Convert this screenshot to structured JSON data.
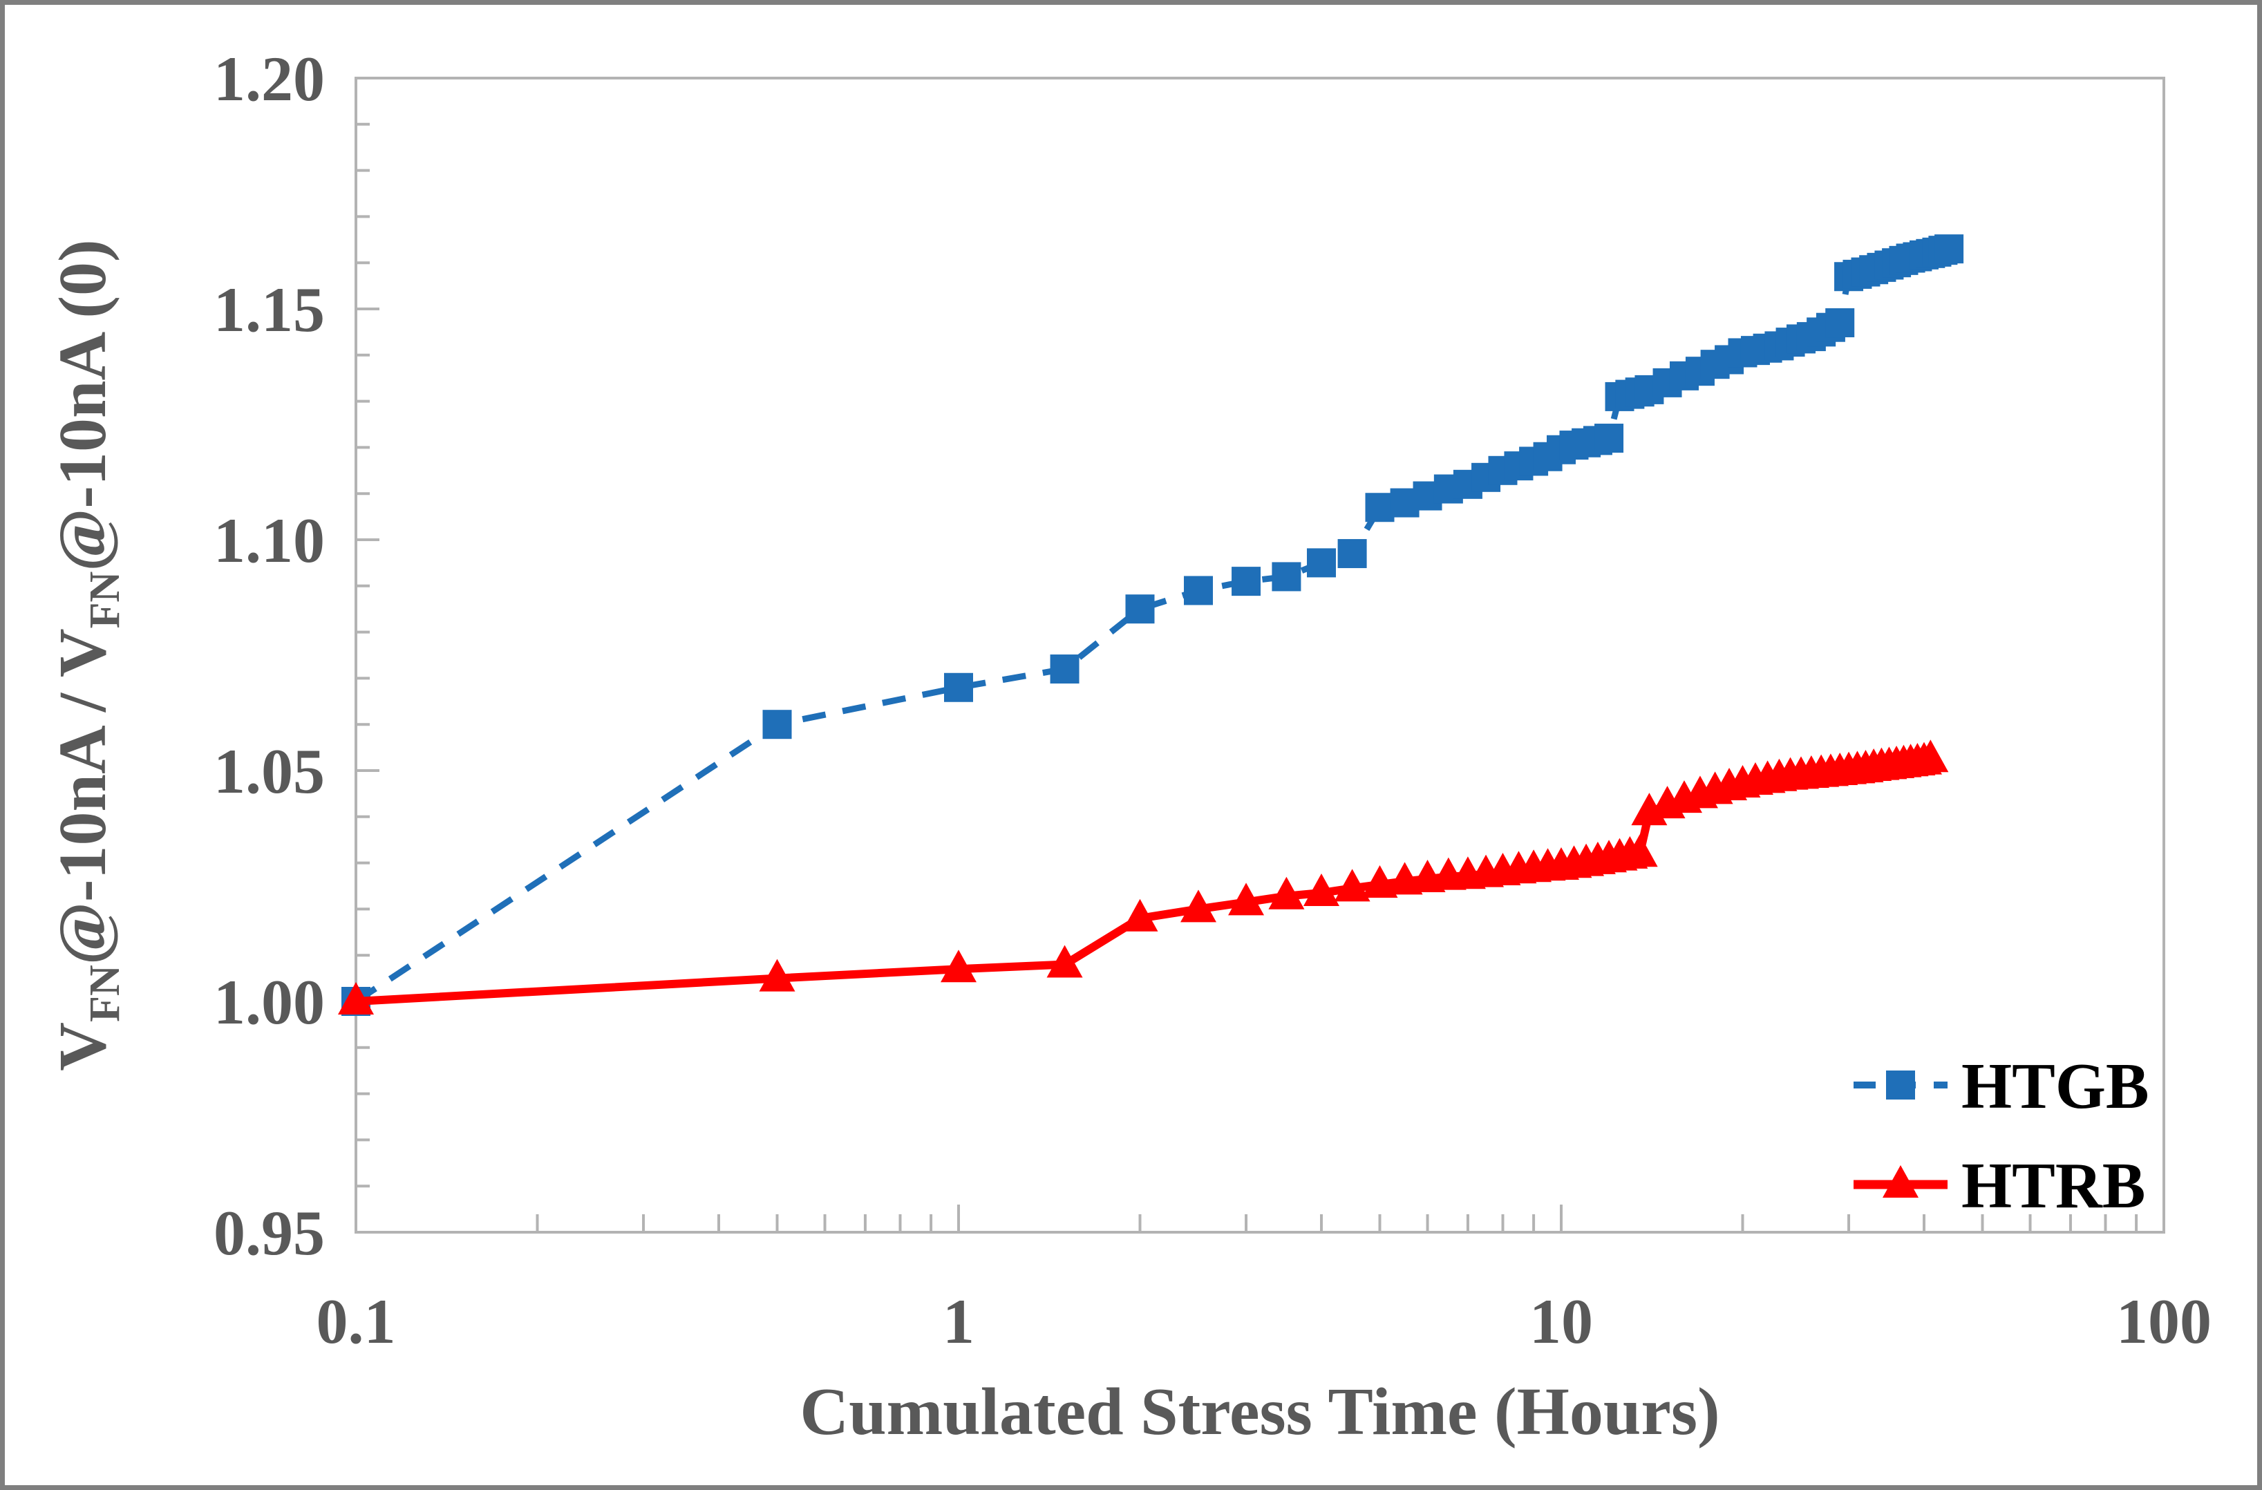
{
  "colors": {
    "htgb_blue": "#1F6FB8",
    "htrb_red": "#FF0000",
    "axis_gray": "#B3B3B3",
    "text_gray": "#595959",
    "legend_text": "#000000",
    "figure_border": "#7F7F7F",
    "background": "#FFFFFF"
  },
  "legend": {
    "items": [
      {
        "label": "HTGB"
      },
      {
        "label": "HTRB"
      }
    ]
  },
  "chart_data": {
    "type": "line",
    "title": "",
    "xlabel": "Cumulated Stress Time (Hours)",
    "ylabel": "VFN@-10nA / VFN@-10nA (0)",
    "ylabel_parts": [
      {
        "t": "V"
      },
      {
        "t": "FN",
        "sub": true
      },
      {
        "t": "@-10nA / V"
      },
      {
        "t": "FN",
        "sub": true
      },
      {
        "t": "@-10nA (0)"
      }
    ],
    "x_scale": "log",
    "xlim": [
      0.1,
      100
    ],
    "ylim": [
      0.95,
      1.2
    ],
    "grid": false,
    "legend_position": "inside-bottom-right",
    "x_ticks": [
      {
        "v": 0.1,
        "label": "0.1"
      },
      {
        "v": 1,
        "label": "1"
      },
      {
        "v": 10,
        "label": "10"
      },
      {
        "v": 100,
        "label": "100"
      }
    ],
    "y_tick_minor_step": 0.01,
    "y_tick_major_step": 0.05,
    "y_tick_labels": [
      "0.95",
      "1.00",
      "1.05",
      "1.10",
      "1.15",
      "1.20"
    ],
    "series": [
      {
        "name": "HTGB",
        "color": "#1F6FB8",
        "line": "dashed",
        "marker": "square",
        "points": [
          [
            0.1,
            1.0
          ],
          [
            0.5,
            1.06
          ],
          [
            1,
            1.068
          ],
          [
            1.5,
            1.072
          ],
          [
            2,
            1.085
          ],
          [
            2.5,
            1.089
          ],
          [
            3,
            1.091
          ],
          [
            3.5,
            1.092
          ],
          [
            4,
            1.095
          ],
          [
            4.5,
            1.097
          ],
          [
            5,
            1.107
          ],
          [
            5.5,
            1.108
          ],
          [
            6,
            1.1095
          ],
          [
            6.5,
            1.111
          ],
          [
            7,
            1.112
          ],
          [
            7.5,
            1.1135
          ],
          [
            8,
            1.115
          ],
          [
            8.5,
            1.116
          ],
          [
            9,
            1.117
          ],
          [
            9.5,
            1.118
          ],
          [
            10,
            1.1195
          ],
          [
            10.5,
            1.1205
          ],
          [
            11,
            1.121
          ],
          [
            11.5,
            1.1215
          ],
          [
            12,
            1.122
          ],
          [
            12.5,
            1.131
          ],
          [
            13,
            1.1315
          ],
          [
            13.5,
            1.132
          ],
          [
            14,
            1.1325
          ],
          [
            15,
            1.134
          ],
          [
            16,
            1.1355
          ],
          [
            17,
            1.1365
          ],
          [
            18,
            1.138
          ],
          [
            19,
            1.139
          ],
          [
            20,
            1.1405
          ],
          [
            21,
            1.141
          ],
          [
            22,
            1.1415
          ],
          [
            23,
            1.142
          ],
          [
            24,
            1.1428
          ],
          [
            25,
            1.1435
          ],
          [
            26,
            1.144
          ],
          [
            27,
            1.145
          ],
          [
            28,
            1.146
          ],
          [
            29,
            1.147
          ],
          [
            30,
            1.157
          ],
          [
            31,
            1.1575
          ],
          [
            32,
            1.158
          ],
          [
            33,
            1.1585
          ],
          [
            34,
            1.159
          ],
          [
            35,
            1.1595
          ],
          [
            36,
            1.16
          ],
          [
            37,
            1.1605
          ],
          [
            38,
            1.161
          ],
          [
            39,
            1.1613
          ],
          [
            40,
            1.1617
          ],
          [
            41,
            1.162
          ],
          [
            42,
            1.1623
          ],
          [
            43,
            1.1627
          ],
          [
            44,
            1.163
          ]
        ]
      },
      {
        "name": "HTRB",
        "color": "#FF0000",
        "line": "solid",
        "marker": "triangle",
        "points": [
          [
            0.1,
            1.0
          ],
          [
            0.5,
            1.005
          ],
          [
            1,
            1.007
          ],
          [
            1.5,
            1.008
          ],
          [
            2,
            1.018
          ],
          [
            2.5,
            1.02
          ],
          [
            3,
            1.0215
          ],
          [
            3.5,
            1.0228
          ],
          [
            4,
            1.0235
          ],
          [
            4.5,
            1.0245
          ],
          [
            5,
            1.0253
          ],
          [
            5.5,
            1.026
          ],
          [
            6,
            1.0265
          ],
          [
            6.5,
            1.027
          ],
          [
            7,
            1.0272
          ],
          [
            7.5,
            1.0276
          ],
          [
            8,
            1.028
          ],
          [
            8.5,
            1.0284
          ],
          [
            9,
            1.0287
          ],
          [
            9.5,
            1.029
          ],
          [
            10,
            1.0292
          ],
          [
            10.5,
            1.0296
          ],
          [
            11,
            1.03
          ],
          [
            11.5,
            1.0304
          ],
          [
            12,
            1.0308
          ],
          [
            12.5,
            1.0312
          ],
          [
            13,
            1.0316
          ],
          [
            13.5,
            1.032
          ],
          [
            14,
            1.041
          ],
          [
            15,
            1.0425
          ],
          [
            16,
            1.0437
          ],
          [
            17,
            1.0447
          ],
          [
            18,
            1.0456
          ],
          [
            19,
            1.0464
          ],
          [
            20,
            1.047
          ],
          [
            21,
            1.0476
          ],
          [
            22,
            1.048
          ],
          [
            23,
            1.0484
          ],
          [
            24,
            1.0487
          ],
          [
            25,
            1.0489
          ],
          [
            26,
            1.0491
          ],
          [
            27,
            1.0493
          ],
          [
            28,
            1.0495
          ],
          [
            29,
            1.0497
          ],
          [
            30,
            1.0499
          ],
          [
            31,
            1.0501
          ],
          [
            32,
            1.0503
          ],
          [
            33,
            1.0506
          ],
          [
            34,
            1.0508
          ],
          [
            35,
            1.051
          ],
          [
            36,
            1.0512
          ],
          [
            37,
            1.0514
          ],
          [
            38,
            1.0516
          ],
          [
            39,
            1.0518
          ],
          [
            40,
            1.052
          ],
          [
            41,
            1.0525
          ]
        ]
      }
    ]
  }
}
